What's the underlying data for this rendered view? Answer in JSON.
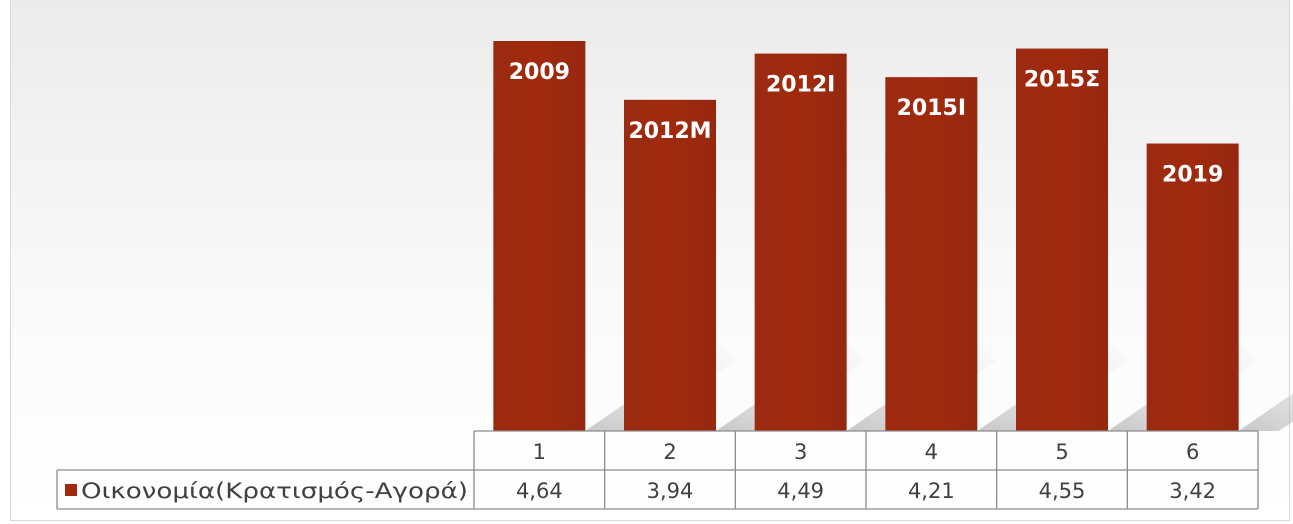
{
  "chart_data": {
    "type": "bar",
    "categories": [
      "1",
      "2",
      "3",
      "4",
      "5",
      "6"
    ],
    "bar_labels": [
      "2009",
      "2012Μ",
      "2012Ι",
      "2015Ι",
      "2015Σ",
      "2019"
    ],
    "series": [
      {
        "name": "Οικονομία(Κρατισμός-Αγορά)",
        "values": [
          4.64,
          3.94,
          4.49,
          4.21,
          4.55,
          3.42
        ],
        "display_values": [
          "4,64",
          "3,94",
          "4,49",
          "4,21",
          "4,55",
          "3,42"
        ],
        "color": "#a12a0e"
      }
    ],
    "ylim": [
      0,
      4.64
    ],
    "title": "",
    "xlabel": "",
    "ylabel": "",
    "grid": false,
    "legend": "data-table-left"
  },
  "colors": {
    "bar": "#a12a0e",
    "table_border": "#8c8c8c",
    "label_text": "#ffffff"
  }
}
